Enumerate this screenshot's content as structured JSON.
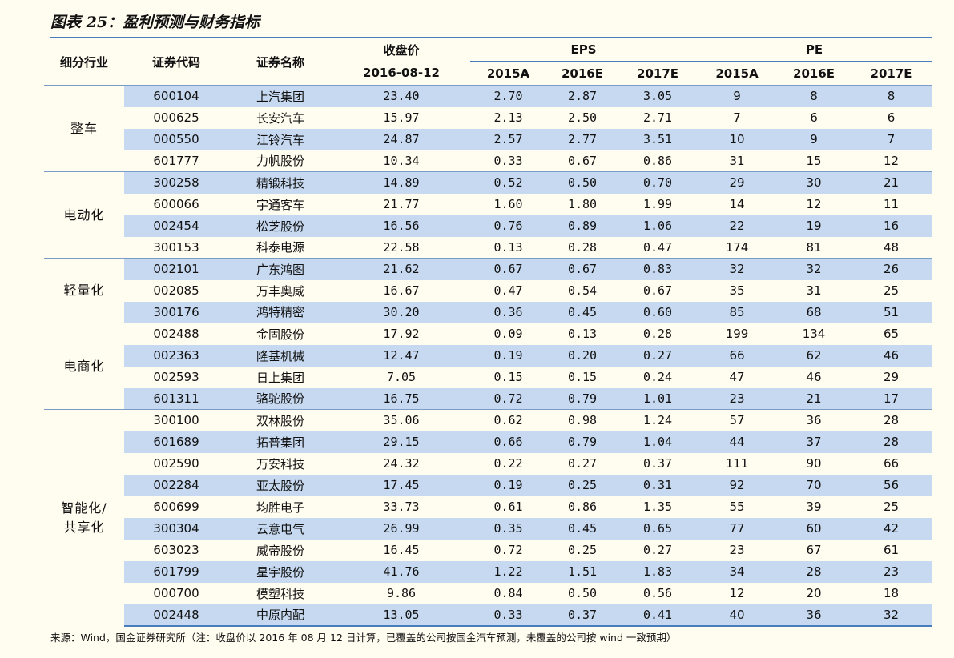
{
  "title": "图表 25：盈利预测与财务指标",
  "header": {
    "industry": "细分行业",
    "code": "证券代码",
    "name": "证券名称",
    "close": "收盘价",
    "close_date": "2016-08-12",
    "eps": "EPS",
    "pe": "PE",
    "years": [
      "2015A",
      "2016E",
      "2017E"
    ]
  },
  "groups": [
    {
      "industry": "整车",
      "rows": [
        {
          "code": "600104",
          "name": "上汽集团",
          "close": "23.40",
          "eps": [
            "2.70",
            "2.87",
            "3.05"
          ],
          "pe": [
            "9",
            "8",
            "8"
          ]
        },
        {
          "code": "000625",
          "name": "长安汽车",
          "close": "15.97",
          "eps": [
            "2.13",
            "2.50",
            "2.71"
          ],
          "pe": [
            "7",
            "6",
            "6"
          ]
        },
        {
          "code": "000550",
          "name": "江铃汽车",
          "close": "24.87",
          "eps": [
            "2.57",
            "2.77",
            "3.51"
          ],
          "pe": [
            "10",
            "9",
            "7"
          ]
        },
        {
          "code": "601777",
          "name": "力帆股份",
          "close": "10.34",
          "eps": [
            "0.33",
            "0.67",
            "0.86"
          ],
          "pe": [
            "31",
            "15",
            "12"
          ]
        }
      ]
    },
    {
      "industry": "电动化",
      "rows": [
        {
          "code": "300258",
          "name": "精锻科技",
          "close": "14.89",
          "eps": [
            "0.52",
            "0.50",
            "0.70"
          ],
          "pe": [
            "29",
            "30",
            "21"
          ]
        },
        {
          "code": "600066",
          "name": "宇通客车",
          "close": "21.77",
          "eps": [
            "1.60",
            "1.80",
            "1.99"
          ],
          "pe": [
            "14",
            "12",
            "11"
          ]
        },
        {
          "code": "002454",
          "name": "松芝股份",
          "close": "16.56",
          "eps": [
            "0.76",
            "0.89",
            "1.06"
          ],
          "pe": [
            "22",
            "19",
            "16"
          ]
        },
        {
          "code": "300153",
          "name": "科泰电源",
          "close": "22.58",
          "eps": [
            "0.13",
            "0.28",
            "0.47"
          ],
          "pe": [
            "174",
            "81",
            "48"
          ]
        }
      ]
    },
    {
      "industry": "轻量化",
      "rows": [
        {
          "code": "002101",
          "name": "广东鸿图",
          "close": "21.62",
          "eps": [
            "0.67",
            "0.67",
            "0.83"
          ],
          "pe": [
            "32",
            "32",
            "26"
          ]
        },
        {
          "code": "002085",
          "name": "万丰奥威",
          "close": "16.67",
          "eps": [
            "0.47",
            "0.54",
            "0.67"
          ],
          "pe": [
            "35",
            "31",
            "25"
          ]
        },
        {
          "code": "300176",
          "name": "鸿特精密",
          "close": "30.20",
          "eps": [
            "0.36",
            "0.45",
            "0.60"
          ],
          "pe": [
            "85",
            "68",
            "51"
          ]
        }
      ]
    },
    {
      "industry": "电商化",
      "rows": [
        {
          "code": "002488",
          "name": "金固股份",
          "close": "17.92",
          "eps": [
            "0.09",
            "0.13",
            "0.28"
          ],
          "pe": [
            "199",
            "134",
            "65"
          ]
        },
        {
          "code": "002363",
          "name": "隆基机械",
          "close": "12.47",
          "eps": [
            "0.19",
            "0.20",
            "0.27"
          ],
          "pe": [
            "66",
            "62",
            "46"
          ]
        },
        {
          "code": "002593",
          "name": "日上集团",
          "close": "7.05",
          "eps": [
            "0.15",
            "0.15",
            "0.24"
          ],
          "pe": [
            "47",
            "46",
            "29"
          ]
        },
        {
          "code": "601311",
          "name": "骆驼股份",
          "close": "16.75",
          "eps": [
            "0.72",
            "0.79",
            "1.01"
          ],
          "pe": [
            "23",
            "21",
            "17"
          ]
        }
      ]
    },
    {
      "industry": "智能化/共享化",
      "rows": [
        {
          "code": "300100",
          "name": "双林股份",
          "close": "35.06",
          "eps": [
            "0.62",
            "0.98",
            "1.24"
          ],
          "pe": [
            "57",
            "36",
            "28"
          ]
        },
        {
          "code": "601689",
          "name": "拓普集团",
          "close": "29.15",
          "eps": [
            "0.66",
            "0.79",
            "1.04"
          ],
          "pe": [
            "44",
            "37",
            "28"
          ]
        },
        {
          "code": "002590",
          "name": "万安科技",
          "close": "24.32",
          "eps": [
            "0.22",
            "0.27",
            "0.37"
          ],
          "pe": [
            "111",
            "90",
            "66"
          ]
        },
        {
          "code": "002284",
          "name": "亚太股份",
          "close": "17.45",
          "eps": [
            "0.19",
            "0.25",
            "0.31"
          ],
          "pe": [
            "92",
            "70",
            "56"
          ]
        },
        {
          "code": "600699",
          "name": "均胜电子",
          "close": "33.73",
          "eps": [
            "0.61",
            "0.86",
            "1.35"
          ],
          "pe": [
            "55",
            "39",
            "25"
          ]
        },
        {
          "code": "300304",
          "name": "云意电气",
          "close": "26.99",
          "eps": [
            "0.35",
            "0.45",
            "0.65"
          ],
          "pe": [
            "77",
            "60",
            "42"
          ]
        },
        {
          "code": "603023",
          "name": "威帝股份",
          "close": "16.45",
          "eps": [
            "0.72",
            "0.25",
            "0.27"
          ],
          "pe": [
            "23",
            "67",
            "61"
          ]
        },
        {
          "code": "601799",
          "name": "星宇股份",
          "close": "41.76",
          "eps": [
            "1.22",
            "1.51",
            "1.83"
          ],
          "pe": [
            "34",
            "28",
            "23"
          ]
        },
        {
          "code": "000700",
          "name": "模塑科技",
          "close": "9.86",
          "eps": [
            "0.84",
            "0.50",
            "0.56"
          ],
          "pe": [
            "12",
            "20",
            "18"
          ]
        },
        {
          "code": "002448",
          "name": "中原内配",
          "close": "13.05",
          "eps": [
            "0.33",
            "0.37",
            "0.41"
          ],
          "pe": [
            "40",
            "36",
            "32"
          ]
        }
      ]
    }
  ],
  "source": "来源：Wind，国金证券研究所（注：收盘价以 2016 年 08 月 12 日计算，已覆盖的公司按国金汽车预测，未覆盖的公司按 wind 一致预期）",
  "colors": {
    "shade": "#C6D9F0",
    "rule": "#4A7DBE",
    "background": "#FFFCF0"
  }
}
